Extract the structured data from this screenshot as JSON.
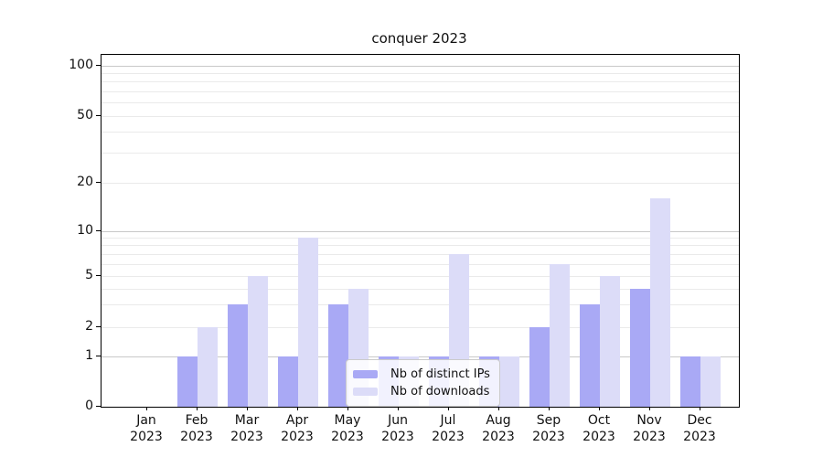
{
  "chart_data": {
    "type": "bar",
    "title": "conquer 2023",
    "categories": [
      "Jan",
      "Feb",
      "Mar",
      "Apr",
      "May",
      "Jun",
      "Jul",
      "Aug",
      "Sep",
      "Oct",
      "Nov",
      "Dec"
    ],
    "year_label": "2023",
    "series": [
      {
        "name": "Nb of distinct IPs",
        "color": "#a9a9f5",
        "values": [
          0,
          1,
          3,
          1,
          3,
          1,
          1,
          1,
          2,
          3,
          4,
          1
        ]
      },
      {
        "name": "Nb of downloads",
        "color": "#dcdcf8",
        "values": [
          0,
          2,
          5,
          9,
          4,
          1,
          7,
          1,
          6,
          5,
          16,
          1
        ]
      }
    ],
    "yticks": [
      0,
      1,
      2,
      5,
      10,
      20,
      50,
      100
    ],
    "yscale": "log-like with 0 baseline",
    "ylim": [
      0,
      120
    ],
    "xlabel": "",
    "ylabel": "",
    "grid": "horizontal major (1,10,100) and minor (2-9, 20-90)",
    "legend_position": "lower center"
  },
  "colors": {
    "bar_distinct_ips": "#a9a9f5",
    "bar_downloads": "#dcdcf8",
    "grid_major": "#c8c8c8",
    "grid_minor": "#eaeaea",
    "axis": "#000000",
    "legend_border": "#cbcbcb",
    "text": "#111111"
  }
}
